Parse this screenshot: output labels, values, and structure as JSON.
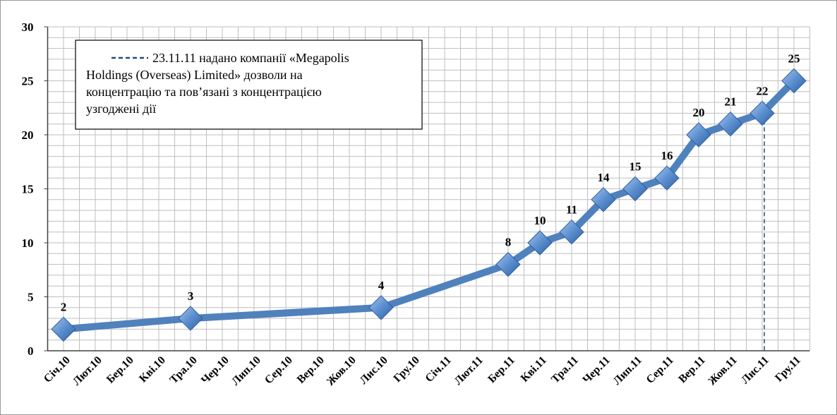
{
  "chart_data": {
    "type": "line",
    "categories": [
      "Січ.10",
      "Лют.10",
      "Бер.10",
      "Кві.10",
      "Тра.10",
      "Чер.10",
      "Лип.10",
      "Сер.10",
      "Вер.10",
      "Жов.10",
      "Лис.10",
      "Гру.10",
      "Січ.11",
      "Лют.11",
      "Бер.11",
      "Кві.11",
      "Тра.11",
      "Чер.11",
      "Лип.11",
      "Сер.11",
      "Вер.11",
      "Жов.11",
      "Лис.11",
      "Гру.11"
    ],
    "series": [
      {
        "color": "#4f81bd",
        "values": [
          2,
          null,
          null,
          null,
          3,
          null,
          null,
          null,
          null,
          null,
          4,
          null,
          null,
          null,
          8,
          10,
          11,
          14,
          15,
          16,
          20,
          21,
          22,
          25
        ]
      }
    ],
    "ylim": [
      0,
      30
    ],
    "yticks": [
      0,
      5,
      10,
      15,
      20,
      25,
      30
    ],
    "minor_yticks": [
      0,
      1,
      2,
      3,
      4,
      5,
      6,
      7,
      8,
      9,
      10,
      11,
      12,
      13,
      14,
      15,
      16,
      17,
      18,
      19,
      20,
      21,
      22,
      23,
      24,
      25,
      26,
      27,
      28,
      29,
      30
    ],
    "grid": true,
    "annotation": {
      "category": "Лис.11",
      "color": "#1f4e79",
      "lines": [
        "23.11.11 надано компанії «Megapolis",
        "Holdings (Overseas) Limited» дозволи на",
        "концентрацію та пов’язані з концентрацією",
        "узгоджені дії"
      ]
    }
  }
}
